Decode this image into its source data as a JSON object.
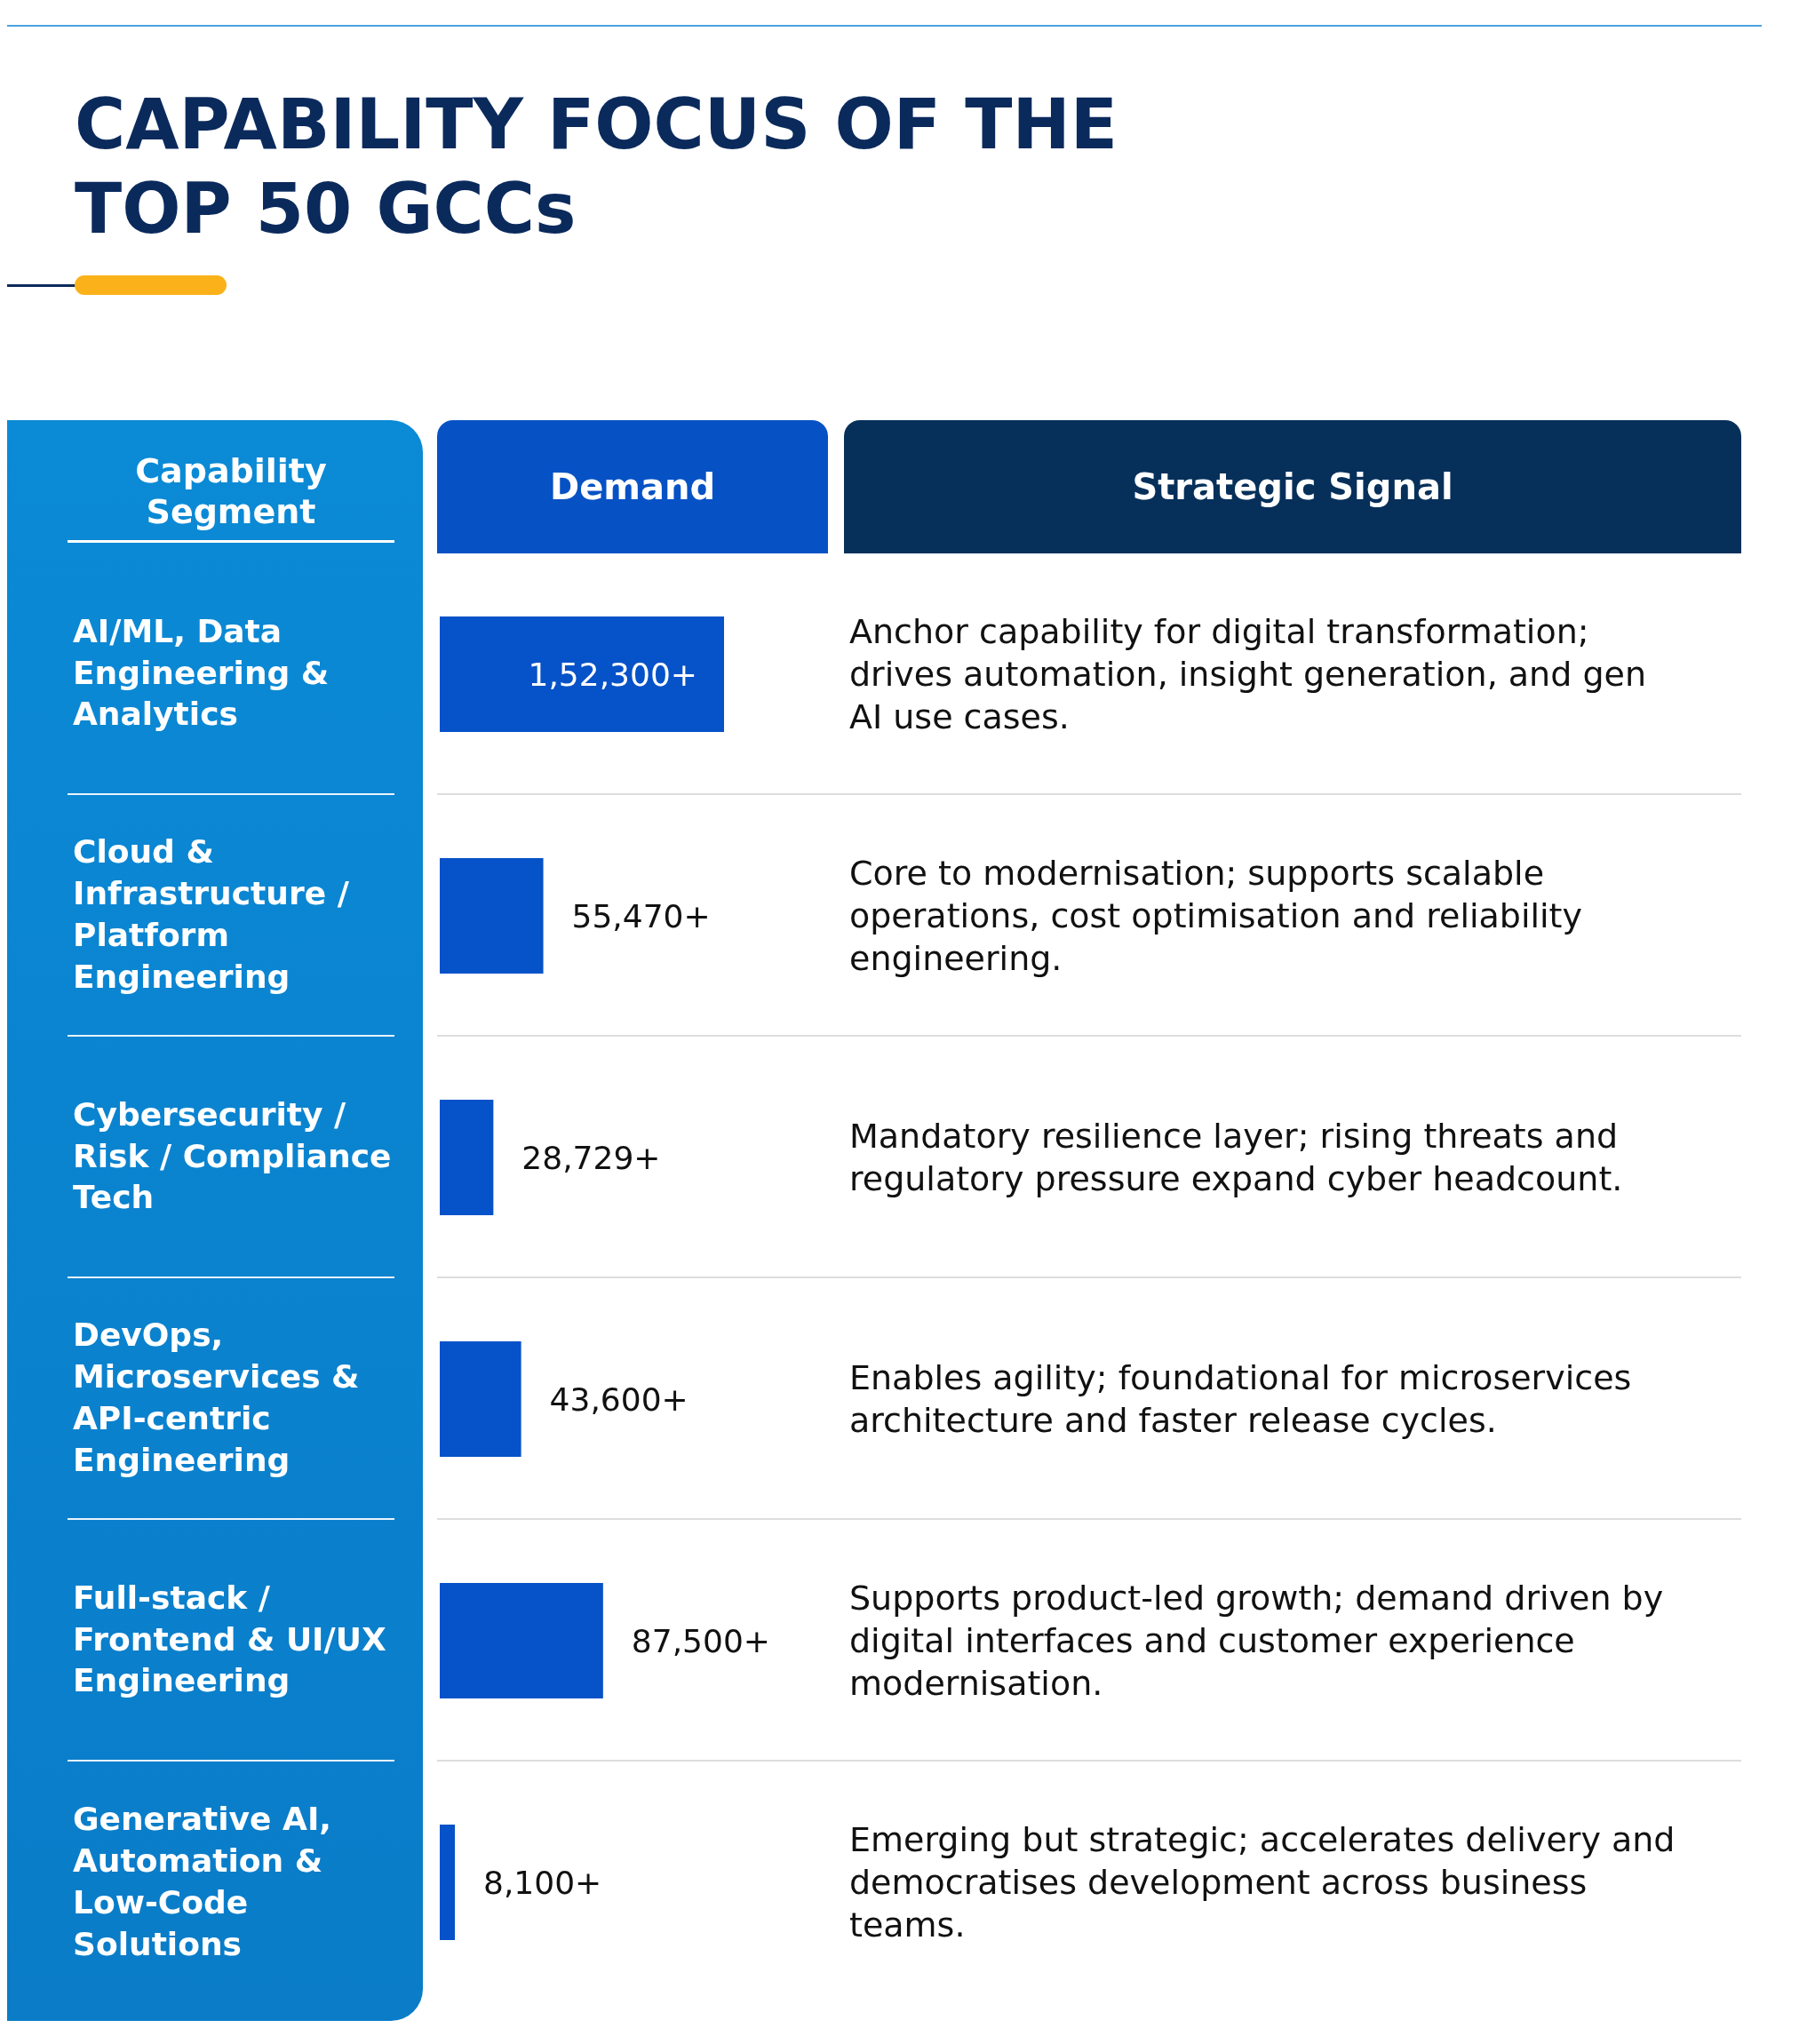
{
  "chart_data": {
    "type": "bar",
    "orientation": "horizontal",
    "title": "CAPABILITY FOCUS OF THE TOP 50 GCCs",
    "ylabel": "Capability Segment",
    "xlabel": "Demand",
    "categories": [
      "AI/ML, Data Engineering & Analytics",
      "Cloud & Infrastructure / Platform Engineering",
      "Cybersecurity / Risk / Compliance Tech",
      "DevOps, Microservices & API-centric Engineering",
      "Full-stack / Frontend & UI/UX Engineering",
      "Generative AI, Automation & Low-Code Solutions"
    ],
    "values": [
      152300,
      55470,
      28729,
      43600,
      87500,
      8100
    ],
    "value_labels": [
      "1,52,300+",
      "55,470+",
      "28,729+",
      "43,600+",
      "87,500+",
      "8,100+"
    ],
    "color": "#0652c8",
    "annotations": [
      "Strategic Signal",
      "Anchor capability for digital transformation; drives automation, insight generation, and gen AI use cases.",
      "Core to modernisation; supports scalable operations, cost optimisation and reliability engineering.",
      "Mandatory resilience layer; rising threats and regulatory pressure expand cyber headcount.",
      "Enables agility; foundational for microservices architecture and faster release cycles.",
      "Supports product-led growth; demand driven by digital interfaces and customer experience modernisation.",
      "Emerging but strategic; accelerates delivery and democratises development across business teams."
    ]
  }
}
